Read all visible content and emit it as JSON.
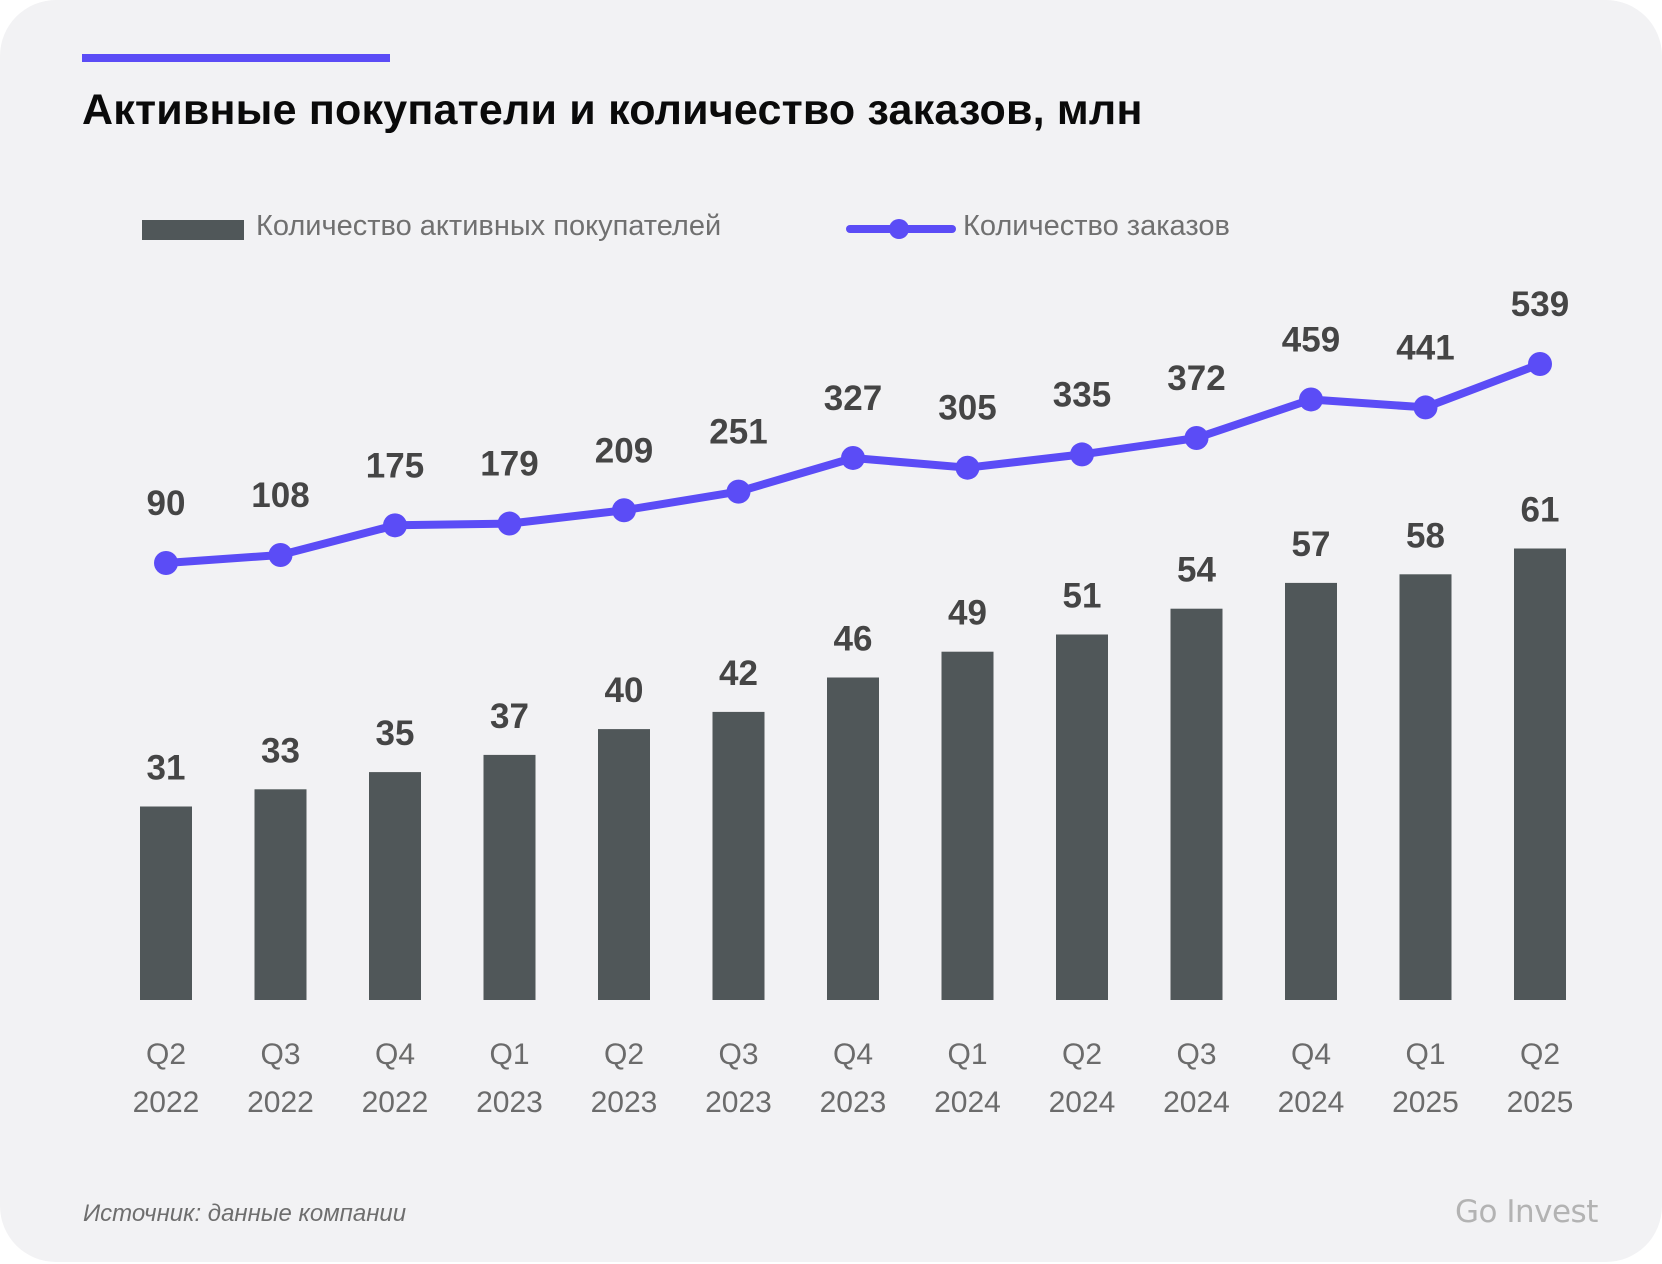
{
  "header": {
    "title": "Активные покупатели и количество заказов, млн"
  },
  "legend": {
    "bars_label": "Количество активных покупателей",
    "line_label": "Количество заказов"
  },
  "footer": {
    "source": "Источник: данные компании",
    "brand": "Go Invest"
  },
  "colors": {
    "bar": "#505759",
    "line": "#5b4cf6",
    "accent": "#5b4cf6",
    "background": "#f2f2f4"
  },
  "chart_data": {
    "type": "bar+line",
    "title": "Активные покупатели и количество заказов, млн",
    "xlabel": "",
    "ylabel": "",
    "legend_position": "top-left",
    "grid": false,
    "categories": [
      {
        "quarter": "Q2",
        "year": "2022"
      },
      {
        "quarter": "Q3",
        "year": "2022"
      },
      {
        "quarter": "Q4",
        "year": "2022"
      },
      {
        "quarter": "Q1",
        "year": "2023"
      },
      {
        "quarter": "Q2",
        "year": "2023"
      },
      {
        "quarter": "Q3",
        "year": "2023"
      },
      {
        "quarter": "Q4",
        "year": "2023"
      },
      {
        "quarter": "Q1",
        "year": "2024"
      },
      {
        "quarter": "Q2",
        "year": "2024"
      },
      {
        "quarter": "Q3",
        "year": "2024"
      },
      {
        "quarter": "Q4",
        "year": "2024"
      },
      {
        "quarter": "Q1",
        "year": "2025"
      },
      {
        "quarter": "Q2",
        "year": "2025"
      }
    ],
    "series": [
      {
        "name": "Количество активных покупателей",
        "type": "bar",
        "values": [
          31,
          33,
          35,
          37,
          40,
          42,
          46,
          49,
          51,
          54,
          57,
          58,
          61
        ]
      },
      {
        "name": "Количество заказов",
        "type": "line",
        "values": [
          90,
          108,
          175,
          179,
          209,
          251,
          327,
          305,
          335,
          372,
          459,
          441,
          539
        ]
      }
    ]
  }
}
